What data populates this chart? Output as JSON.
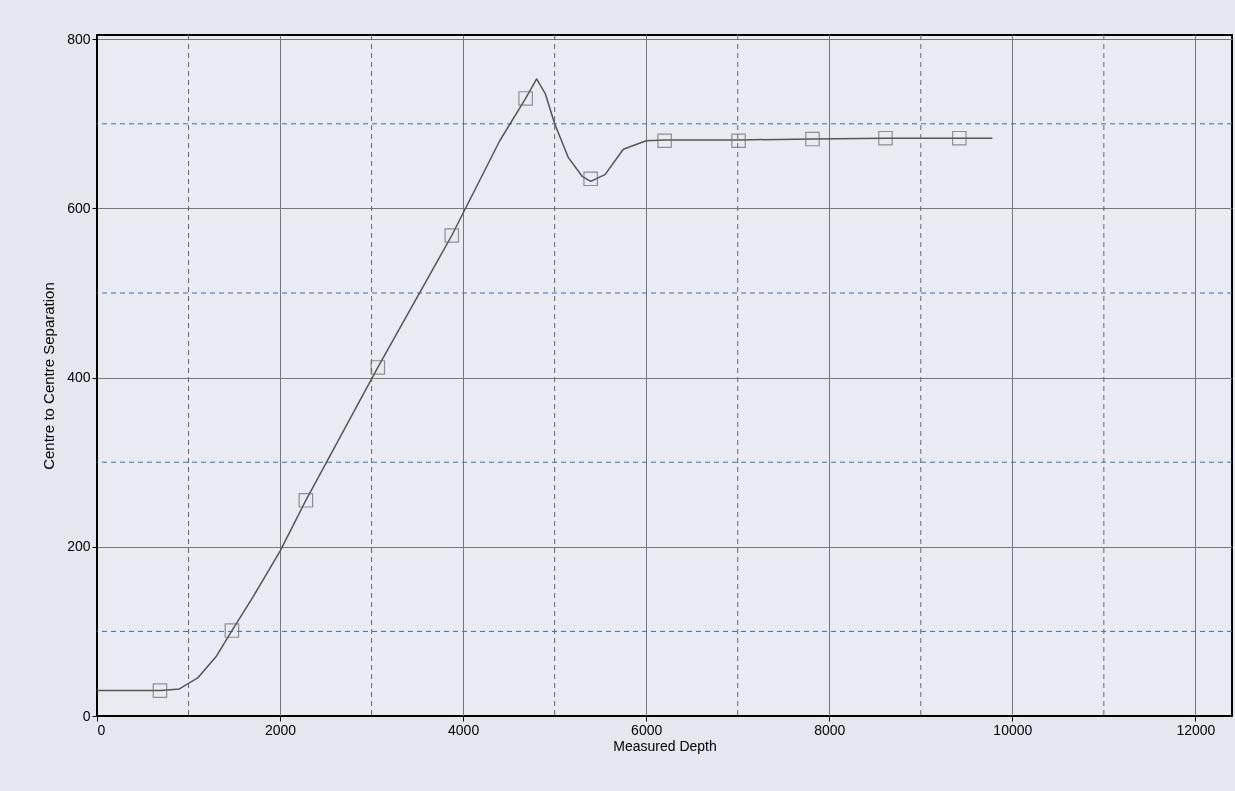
{
  "chart_data": {
    "type": "line",
    "xlabel": "Measured Depth",
    "ylabel": "Centre to Centre Separation",
    "xlim": [
      0,
      12400
    ],
    "ylim": [
      0,
      805
    ],
    "xticks": [
      0,
      {
        "value": 1000,
        "label": null
      },
      2000,
      {
        "value": 3000,
        "label": null
      },
      4000,
      {
        "value": 5000,
        "label": null
      },
      6000,
      {
        "value": 7000,
        "label": null
      },
      8000,
      {
        "value": 9000,
        "label": null
      },
      10000,
      {
        "value": 11000,
        "label": null
      },
      12000
    ],
    "yticks": [
      0,
      {
        "value": 100,
        "label": null
      },
      200,
      {
        "value": 300,
        "label": null
      },
      400,
      {
        "value": 500,
        "label": null
      },
      600,
      {
        "value": 700,
        "label": null
      },
      800
    ],
    "grid": true,
    "series": [
      {
        "color": "#555555",
        "marker": "none",
        "x": [
          0,
          700,
          900,
          1100,
          1300,
          1474,
          1700,
          2000,
          2282,
          3068,
          3876,
          4400,
          4683,
          4803,
          4900,
          5000,
          5150,
          5300,
          5393,
          5550,
          5750,
          6000,
          6201,
          7009,
          7817,
          8614,
          9421,
          9782
        ],
        "values": [
          30,
          30,
          32,
          45,
          70,
          101,
          140,
          195,
          255,
          412,
          568,
          680,
          730,
          753,
          735,
          700,
          660,
          638,
          632,
          640,
          670,
          680,
          681,
          681,
          682,
          683,
          683,
          683
        ]
      },
      {
        "type": "scatter",
        "color": "#666666",
        "marker": "square",
        "x": [
          688,
          1474,
          2282,
          3068,
          3876,
          4683,
          5393,
          6201,
          7009,
          7817,
          8614,
          9421
        ],
        "values": [
          30,
          101,
          255,
          412,
          568,
          730,
          635,
          680,
          680,
          682,
          683,
          683
        ]
      }
    ]
  }
}
